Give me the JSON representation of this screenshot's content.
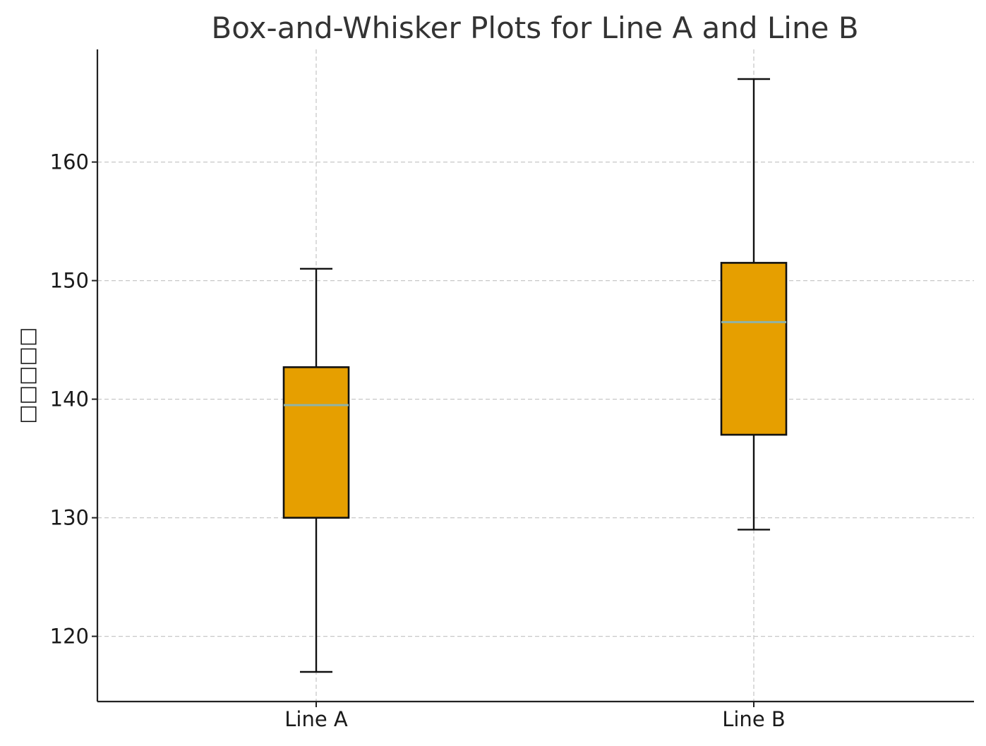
{
  "chart_data": {
    "type": "box",
    "title": "Box-and-Whisker Plots for Line A and Line B",
    "xlabel": "",
    "ylabel": "□□□□□",
    "categories": [
      "Line A",
      "Line B"
    ],
    "series": [
      {
        "category": "Line A",
        "whisker_low": 117,
        "q1": 130,
        "median": 139.5,
        "q3": 142.7,
        "whisker_high": 151
      },
      {
        "category": "Line B",
        "whisker_low": 129,
        "q1": 137,
        "median": 146.5,
        "q3": 151.5,
        "whisker_high": 167
      }
    ],
    "ylim": [
      114.5,
      169.5
    ],
    "yticks": [
      120,
      130,
      140,
      150,
      160
    ],
    "ytick_labels": [
      "120",
      "130",
      "140",
      "150",
      "160"
    ],
    "grid": true,
    "colors": {
      "box_fill": "#E69F00",
      "median": "#8fb3a8",
      "grid": "#c8c8c8",
      "axis": "#222222"
    }
  }
}
